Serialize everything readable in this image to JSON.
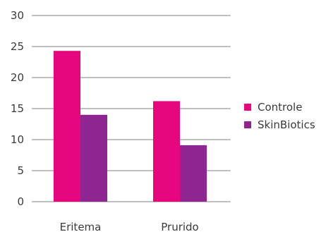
{
  "chart_data": {
    "type": "bar",
    "title": "",
    "xlabel": "",
    "ylabel": "",
    "ylim": [
      0,
      30
    ],
    "yticks": [
      0,
      5,
      10,
      15,
      20,
      25,
      30
    ],
    "grid": true,
    "legend_position": "right",
    "categories": [
      "Eritema",
      "Prurido"
    ],
    "series": [
      {
        "name": "Controle",
        "values": [
          24.3,
          16.2
        ],
        "color": "#e6067e"
      },
      {
        "name": "SkinBiotics",
        "values": [
          14.0,
          9.1
        ],
        "color": "#8e2590"
      }
    ]
  }
}
